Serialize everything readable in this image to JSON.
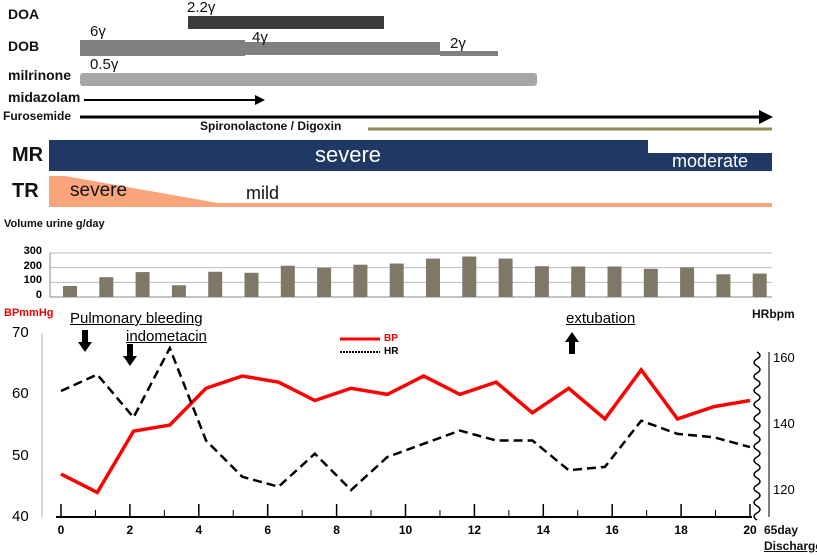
{
  "treatments": {
    "doa": {
      "label": "DOA",
      "doses": [
        "2.2γ"
      ]
    },
    "dob": {
      "label": "DOB",
      "doses": [
        "6γ",
        "4γ",
        "2γ"
      ]
    },
    "milrinone": {
      "label": "milrinone",
      "doses": [
        "0.5γ"
      ]
    },
    "midazolam": {
      "label": "midazolam"
    },
    "furosemide": {
      "label": "Furosemide"
    },
    "spironolactone": {
      "label": "Spironolactone / Digoxin"
    },
    "mr": {
      "label": "MR",
      "states": [
        "severe",
        "moderate"
      ]
    },
    "tr": {
      "label": "TR",
      "states": [
        "severe",
        "mild"
      ]
    }
  },
  "colors": {
    "doa": "#3b3b3b",
    "dob": "#808080",
    "milrinone": "#a6a6a6",
    "spiro": "#948a54",
    "mr": "#1f3864",
    "tr": "#f9a47a",
    "bars": "#7f7866",
    "bp": "#ff0000",
    "hr": "#000000"
  },
  "chart_data": [
    {
      "type": "bar",
      "title": "Volume urine g/day",
      "ylabel": "Volume urine g/day",
      "ylim": [
        0,
        300
      ],
      "yticks": [
        "0",
        "100",
        "200",
        "300"
      ],
      "values": [
        75,
        135,
        170,
        80,
        172,
        165,
        213,
        200,
        220,
        228,
        262,
        276,
        262,
        210,
        208,
        208,
        192,
        202,
        155,
        160
      ]
    },
    {
      "type": "line",
      "xlabel": "day",
      "ylabel_left": "BPmmHg",
      "ylabel_right": "HRbpm",
      "ylim_left": [
        40,
        70
      ],
      "ylim_right": [
        110,
        170
      ],
      "yticks_left": [
        "40",
        "50",
        "60",
        "70"
      ],
      "yticks_right": [
        "120",
        "140",
        "160"
      ],
      "xticks": [
        "0",
        "2",
        "4",
        "6",
        "8",
        "10",
        "12",
        "14",
        "16",
        "18",
        "20"
      ],
      "x_end_label": "65day",
      "discharge_label": "Discharge",
      "legend": [
        "BP",
        "HR"
      ],
      "legend_position": "top-center",
      "annotations": [
        "Pulmonary bleeding",
        "indometacin",
        "extubation"
      ],
      "series": [
        {
          "name": "BP",
          "axis": "left",
          "values": [
            47,
            44,
            54,
            55,
            61,
            63,
            62,
            59,
            61,
            60,
            63,
            60,
            62,
            57,
            61,
            56,
            64,
            56,
            58,
            59
          ]
        },
        {
          "name": "HR",
          "axis": "right",
          "values": [
            150,
            155,
            142,
            163,
            135,
            124,
            121,
            131,
            120,
            130,
            134,
            138,
            135,
            135,
            126,
            127,
            141,
            137,
            136,
            133
          ]
        }
      ]
    }
  ]
}
